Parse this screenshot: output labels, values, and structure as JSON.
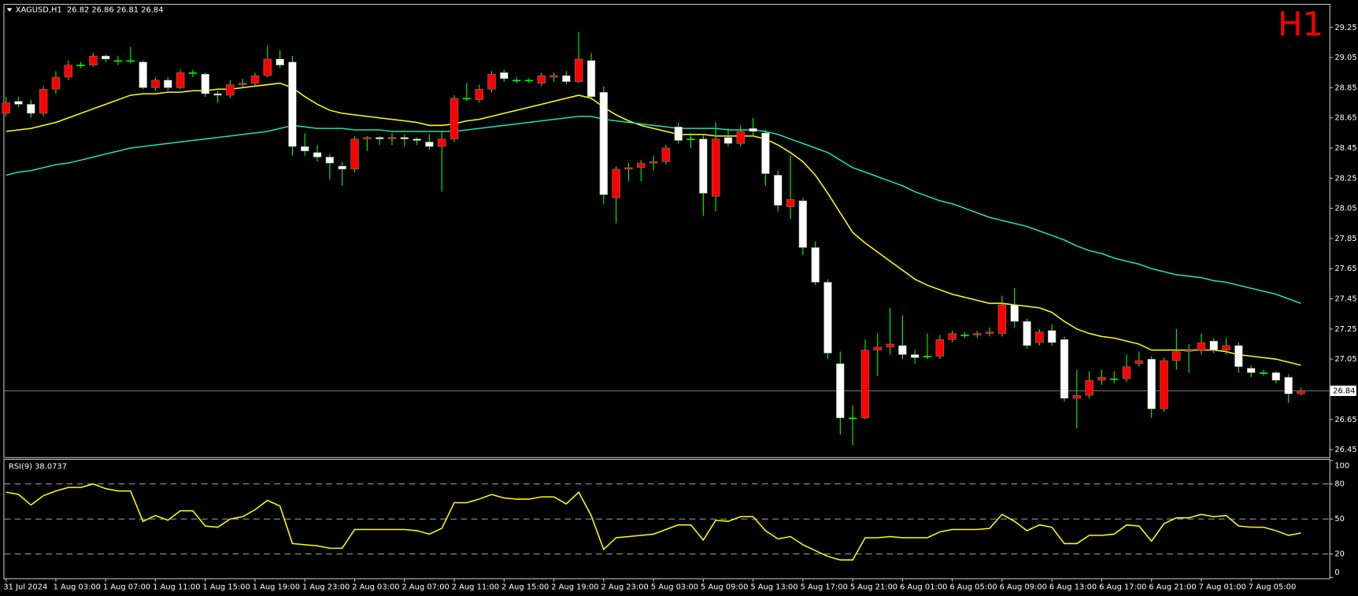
{
  "chart_data": [
    {
      "type": "candlestick",
      "title": "XAGUSD,H1  26.82 26.86 26.81 26.84",
      "timeframe": "H1",
      "timeframe_color": "#ff0000",
      "categories": [
        "31 Jul 2024",
        null,
        null,
        null,
        "1 Aug 03:00",
        null,
        null,
        null,
        "1 Aug 07:00",
        null,
        null,
        null,
        "1 Aug 11:00",
        null,
        null,
        null,
        "1 Aug 15:00",
        null,
        null,
        null,
        "1 Aug 19:00",
        null,
        null,
        null,
        "1 Aug 23:00",
        null,
        null,
        null,
        "2 Aug 03:00",
        null,
        null,
        null,
        "2 Aug 07:00",
        null,
        null,
        null,
        "2 Aug 11:00",
        null,
        null,
        null,
        "2 Aug 15:00",
        null,
        null,
        null,
        "2 Aug 19:00",
        null,
        null,
        null,
        "2 Aug 23:00",
        null,
        null,
        null,
        "5 Aug 03:00",
        null,
        null,
        null,
        "5 Aug 09:00",
        null,
        null,
        null,
        "5 Aug 13:00",
        null,
        null,
        null,
        "5 Aug 17:00",
        null,
        null,
        null,
        "5 Aug 21:00",
        null,
        null,
        null,
        "6 Aug 01:00",
        null,
        null,
        null,
        "6 Aug 05:00",
        null,
        null,
        null,
        "6 Aug 09:00",
        null,
        null,
        null,
        "6 Aug 13:00",
        null,
        null,
        null,
        "6 Aug 17:00",
        null,
        null,
        null,
        "6 Aug 21:00",
        null,
        null,
        null,
        "7 Aug 01:00",
        null,
        null,
        null,
        "7 Aug 05:00",
        null,
        null,
        null,
        null
      ],
      "open": [
        28.68,
        28.76,
        28.74,
        28.68,
        28.84,
        28.92,
        29.0,
        29.0,
        29.06,
        29.03,
        29.03,
        29.02,
        28.85,
        28.9,
        28.85,
        28.95,
        28.94,
        28.81,
        28.8,
        28.87,
        28.88,
        28.93,
        29.04,
        29.02,
        28.46,
        28.42,
        28.39,
        28.33,
        28.31,
        28.51,
        28.52,
        28.51,
        28.52,
        28.51,
        28.49,
        28.46,
        28.51,
        28.78,
        28.77,
        28.84,
        28.95,
        28.9,
        28.9,
        28.88,
        28.92,
        28.93,
        28.89,
        29.03,
        28.82,
        28.12,
        28.31,
        28.32,
        28.35,
        28.36,
        28.59,
        28.51,
        28.51,
        28.13,
        28.52,
        28.48,
        28.58,
        28.55,
        28.27,
        28.06,
        28.1,
        27.79,
        27.56,
        27.02,
        26.66,
        26.66,
        27.11,
        27.13,
        27.14,
        27.08,
        27.07,
        27.07,
        27.18,
        27.21,
        27.21,
        27.22,
        27.22,
        27.41,
        27.3,
        27.16,
        27.24,
        27.18,
        26.79,
        26.81,
        26.91,
        26.92,
        26.92,
        27.02,
        27.05,
        26.72,
        27.04,
        27.1,
        27.11,
        27.17,
        27.11,
        27.14,
        26.99,
        26.96,
        26.96,
        26.93,
        26.82
      ],
      "high": [
        28.79,
        28.79,
        28.77,
        28.86,
        28.96,
        29.03,
        29.02,
        29.08,
        29.07,
        29.06,
        29.12,
        29.03,
        28.92,
        28.92,
        28.97,
        28.97,
        28.95,
        28.83,
        28.9,
        28.91,
        28.95,
        29.13,
        29.1,
        29.06,
        28.55,
        28.47,
        28.41,
        28.36,
        28.53,
        28.53,
        28.53,
        28.55,
        28.54,
        28.52,
        28.54,
        28.56,
        28.8,
        28.88,
        28.87,
        28.96,
        28.97,
        28.92,
        28.91,
        28.95,
        28.95,
        28.96,
        29.22,
        29.08,
        28.86,
        28.33,
        28.35,
        28.37,
        28.4,
        28.47,
        28.62,
        28.55,
        28.54,
        28.62,
        28.58,
        28.6,
        28.65,
        28.57,
        28.3,
        28.4,
        28.12,
        27.83,
        27.58,
        27.1,
        26.74,
        27.18,
        27.22,
        27.39,
        27.34,
        27.11,
        27.22,
        27.21,
        27.24,
        27.23,
        27.24,
        27.26,
        27.47,
        27.52,
        27.32,
        27.25,
        27.28,
        27.2,
        26.98,
        26.97,
        26.98,
        26.97,
        27.08,
        27.1,
        27.07,
        27.06,
        27.25,
        27.15,
        27.22,
        27.19,
        27.19,
        27.16,
        27.01,
        26.98,
        26.97,
        26.95,
        26.86
      ],
      "low": [
        28.66,
        28.72,
        28.65,
        28.66,
        28.81,
        28.9,
        28.98,
        28.99,
        29.02,
        29.0,
        29.01,
        28.84,
        28.83,
        28.83,
        28.84,
        28.92,
        28.79,
        28.75,
        28.78,
        28.85,
        28.86,
        28.92,
        28.98,
        28.4,
        28.4,
        28.36,
        28.24,
        28.2,
        28.29,
        28.43,
        28.47,
        28.47,
        28.46,
        28.47,
        28.44,
        28.16,
        28.49,
        28.76,
        28.75,
        28.82,
        28.89,
        28.88,
        28.88,
        28.86,
        28.89,
        28.87,
        28.88,
        28.77,
        28.08,
        27.95,
        28.23,
        28.23,
        28.3,
        28.34,
        28.48,
        28.45,
        28.0,
        28.03,
        28.46,
        28.46,
        28.53,
        28.2,
        28.03,
        27.98,
        27.74,
        27.54,
        27.05,
        26.55,
        26.48,
        26.65,
        26.94,
        27.08,
        27.05,
        27.02,
        27.05,
        27.05,
        27.16,
        27.19,
        27.19,
        27.2,
        27.2,
        27.26,
        27.12,
        27.14,
        27.14,
        26.77,
        26.59,
        26.79,
        26.88,
        26.89,
        26.9,
        27.0,
        26.66,
        26.7,
        26.98,
        26.96,
        27.08,
        27.09,
        27.08,
        26.96,
        26.93,
        26.94,
        26.89,
        26.76,
        26.81
      ],
      "close": [
        28.75,
        28.74,
        28.68,
        28.84,
        28.92,
        29.0,
        29.0,
        29.06,
        29.04,
        29.03,
        29.03,
        28.85,
        28.9,
        28.85,
        28.95,
        28.95,
        28.81,
        28.8,
        28.87,
        28.88,
        28.93,
        29.04,
        29.0,
        28.46,
        28.43,
        28.39,
        28.35,
        28.31,
        28.51,
        28.52,
        28.51,
        28.52,
        28.51,
        28.5,
        28.46,
        28.51,
        28.78,
        28.78,
        28.84,
        28.94,
        28.91,
        28.9,
        28.9,
        28.93,
        28.93,
        28.89,
        29.04,
        28.79,
        28.14,
        28.31,
        28.32,
        28.35,
        28.36,
        28.45,
        28.5,
        28.51,
        28.15,
        28.51,
        28.48,
        28.56,
        28.56,
        28.28,
        28.07,
        28.11,
        27.79,
        27.56,
        27.09,
        26.66,
        26.66,
        27.11,
        27.13,
        27.15,
        27.08,
        27.06,
        27.07,
        27.18,
        27.22,
        27.21,
        27.22,
        27.23,
        27.41,
        27.3,
        27.14,
        27.23,
        27.16,
        26.79,
        26.81,
        26.91,
        26.93,
        26.92,
        27.0,
        27.04,
        26.72,
        27.04,
        27.1,
        27.11,
        27.16,
        27.11,
        27.14,
        27.0,
        26.96,
        26.96,
        26.91,
        26.82,
        26.84
      ],
      "bull_color": "#ff0000",
      "bear_color": "#ffffff",
      "wick_color": "#00ff00",
      "moving_averages": [
        {
          "color": "#ffff00",
          "values": [
            28.56,
            28.57,
            28.58,
            28.6,
            28.62,
            28.65,
            28.68,
            28.71,
            28.74,
            28.77,
            28.8,
            28.81,
            28.81,
            28.82,
            28.82,
            28.83,
            28.83,
            28.84,
            28.84,
            28.85,
            28.86,
            28.87,
            28.88,
            28.85,
            28.79,
            28.74,
            28.7,
            28.68,
            28.67,
            28.66,
            28.65,
            28.64,
            28.63,
            28.62,
            28.6,
            28.6,
            28.61,
            28.63,
            28.64,
            28.66,
            28.68,
            28.7,
            28.72,
            28.74,
            28.76,
            28.78,
            28.8,
            28.78,
            28.72,
            28.67,
            28.63,
            28.6,
            28.58,
            28.56,
            28.54,
            28.54,
            28.54,
            28.53,
            28.53,
            28.53,
            28.53,
            28.51,
            28.47,
            28.42,
            28.36,
            28.27,
            28.15,
            28.02,
            27.89,
            27.82,
            27.76,
            27.7,
            27.64,
            27.58,
            27.54,
            27.51,
            27.48,
            27.46,
            27.44,
            27.42,
            27.42,
            27.41,
            27.4,
            27.39,
            27.36,
            27.3,
            27.25,
            27.22,
            27.2,
            27.19,
            27.17,
            27.15,
            27.11,
            27.11,
            27.11,
            27.11,
            27.11,
            27.11,
            27.1,
            27.08,
            27.07,
            27.06,
            27.05,
            27.03,
            27.01
          ]
        },
        {
          "color": "#20e0b0",
          "values": [
            28.27,
            28.29,
            28.3,
            28.32,
            28.34,
            28.35,
            28.37,
            28.39,
            28.41,
            28.43,
            28.45,
            28.46,
            28.47,
            28.48,
            28.49,
            28.5,
            28.51,
            28.52,
            28.53,
            28.54,
            28.55,
            28.56,
            28.58,
            28.6,
            28.59,
            28.58,
            28.58,
            28.58,
            28.57,
            28.57,
            28.57,
            28.56,
            28.56,
            28.56,
            28.56,
            28.56,
            28.56,
            28.57,
            28.58,
            28.59,
            28.6,
            28.61,
            28.62,
            28.63,
            28.64,
            28.65,
            28.66,
            28.66,
            28.64,
            28.63,
            28.62,
            28.61,
            28.6,
            28.59,
            28.58,
            28.58,
            28.58,
            28.58,
            28.57,
            28.57,
            28.57,
            28.56,
            28.54,
            28.51,
            28.48,
            28.45,
            28.42,
            28.37,
            28.32,
            28.29,
            28.26,
            28.23,
            28.2,
            28.16,
            28.13,
            28.1,
            28.08,
            28.05,
            28.02,
            27.99,
            27.97,
            27.95,
            27.93,
            27.9,
            27.87,
            27.84,
            27.8,
            27.77,
            27.75,
            27.72,
            27.7,
            27.68,
            27.65,
            27.63,
            27.61,
            27.6,
            27.59,
            27.57,
            27.56,
            27.54,
            27.52,
            27.5,
            27.48,
            27.45,
            27.42
          ]
        }
      ],
      "last_price": 26.84,
      "last_price_color": "#70808c",
      "ylim": [
        26.4,
        29.4
      ],
      "yticks": [
        29.25,
        29.05,
        28.85,
        28.65,
        28.45,
        28.25,
        28.05,
        27.85,
        27.65,
        27.45,
        27.25,
        27.05,
        26.85,
        26.65,
        26.45
      ]
    },
    {
      "type": "line",
      "title": "RSI(9) 38.0737",
      "color": "#ffff00",
      "values": [
        73,
        71,
        62,
        70,
        74,
        77,
        77,
        80,
        76,
        74,
        74,
        48,
        53,
        49,
        57,
        57,
        44,
        43,
        50,
        52,
        58,
        66,
        61,
        29,
        28,
        27,
        25,
        25,
        41,
        41,
        41,
        41,
        41,
        40,
        37,
        42,
        64,
        64,
        67,
        71,
        68,
        67,
        67,
        69,
        69,
        63,
        73,
        53,
        24,
        34,
        35,
        36,
        37,
        41,
        45,
        45,
        32,
        49,
        48,
        52,
        52,
        40,
        33,
        35,
        28,
        23,
        18,
        15,
        15,
        34,
        34,
        35,
        34,
        34,
        34,
        39,
        41,
        41,
        41,
        42,
        54,
        48,
        40,
        45,
        43,
        29,
        29,
        36,
        36,
        37,
        45,
        44,
        31,
        46,
        51,
        51,
        54,
        52,
        53,
        44,
        43,
        43,
        40,
        36,
        38
      ],
      "ylim": [
        0,
        100
      ],
      "yticks": [
        100,
        80,
        50,
        20,
        0
      ],
      "levels": [
        80,
        50,
        20
      ]
    }
  ]
}
